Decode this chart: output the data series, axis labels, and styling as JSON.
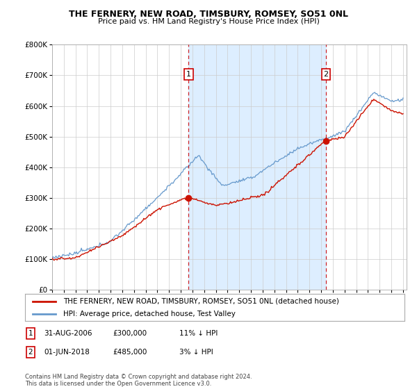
{
  "title": "THE FERNERY, NEW ROAD, TIMSBURY, ROMSEY, SO51 0NL",
  "subtitle": "Price paid vs. HM Land Registry's House Price Index (HPI)",
  "ylim": [
    0,
    800000
  ],
  "yticks": [
    0,
    100000,
    200000,
    300000,
    400000,
    500000,
    600000,
    700000,
    800000
  ],
  "ytick_labels": [
    "£0",
    "£100K",
    "£200K",
    "£300K",
    "£400K",
    "£500K",
    "£600K",
    "£700K",
    "£800K"
  ],
  "hpi_color": "#6699cc",
  "price_color": "#cc1100",
  "shade_color": "#ddeeff",
  "t1_year": 2006.667,
  "t2_year": 2018.417,
  "price1": 300000,
  "price2": 485000,
  "legend_property": "THE FERNERY, NEW ROAD, TIMSBURY, ROMSEY, SO51 0NL (detached house)",
  "legend_hpi": "HPI: Average price, detached house, Test Valley",
  "footer": "Contains HM Land Registry data © Crown copyright and database right 2024.\nThis data is licensed under the Open Government Licence v3.0.",
  "ann1_date": "31-AUG-2006",
  "ann1_price": "£300,000",
  "ann1_hpi": "11% ↓ HPI",
  "ann2_date": "01-JUN-2018",
  "ann2_price": "£485,000",
  "ann2_hpi": "3% ↓ HPI",
  "background_color": "#ffffff",
  "grid_color": "#cccccc",
  "xlim_start": 1995,
  "xlim_end": 2025.3
}
